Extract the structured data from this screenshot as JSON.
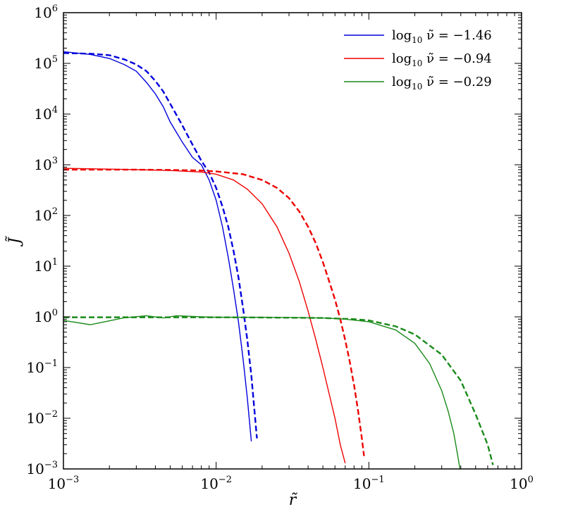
{
  "chart_data": {
    "type": "line",
    "title": "",
    "xlabel": "r̃",
    "ylabel": "J̃",
    "xscale": "log",
    "yscale": "log",
    "xlim": [
      0.001,
      1
    ],
    "ylim": [
      0.001,
      1000000
    ],
    "grid": false,
    "legend_position": "top-right",
    "x_ticks": [
      {
        "base": "10",
        "exp": "−3",
        "value": 0.001
      },
      {
        "base": "10",
        "exp": "−2",
        "value": 0.01
      },
      {
        "base": "10",
        "exp": "−1",
        "value": 0.1
      },
      {
        "base": "10",
        "exp": "0",
        "value": 1
      }
    ],
    "y_ticks": [
      {
        "base": "10",
        "exp": "−3",
        "value": 0.001
      },
      {
        "base": "10",
        "exp": "−2",
        "value": 0.01
      },
      {
        "base": "10",
        "exp": "−1",
        "value": 0.1
      },
      {
        "base": "10",
        "exp": "0",
        "value": 1
      },
      {
        "base": "10",
        "exp": "1",
        "value": 10
      },
      {
        "base": "10",
        "exp": "2",
        "value": 100
      },
      {
        "base": "10",
        "exp": "3",
        "value": 1000
      },
      {
        "base": "10",
        "exp": "4",
        "value": 10000
      },
      {
        "base": "10",
        "exp": "5",
        "value": 100000
      },
      {
        "base": "10",
        "exp": "6",
        "value": 1000000
      }
    ],
    "series": [
      {
        "name_prefix": "log",
        "name_sub": "10",
        "name_suffix": " ν̃ = −1.46",
        "color": "#0000dd",
        "style": "solid",
        "x": [
          0.001,
          0.0015,
          0.002,
          0.0025,
          0.003,
          0.0035,
          0.004,
          0.0045,
          0.005,
          0.006,
          0.007,
          0.008,
          0.009,
          0.01,
          0.011,
          0.012,
          0.013,
          0.014,
          0.015,
          0.016,
          0.017
        ],
        "y": [
          170000,
          150000,
          125000,
          95000,
          70000,
          42000,
          25000,
          14000,
          7000,
          2800,
          1400,
          1000,
          500,
          200,
          60,
          15,
          3.5,
          0.8,
          0.15,
          0.025,
          0.0035
        ]
      },
      {
        "name_prefix": "",
        "name_sub": "",
        "name_suffix": "",
        "color": "#0000dd",
        "style": "dashed",
        "x": [
          0.001,
          0.0015,
          0.002,
          0.0025,
          0.003,
          0.0035,
          0.004,
          0.0045,
          0.005,
          0.006,
          0.007,
          0.008,
          0.009,
          0.01,
          0.011,
          0.012,
          0.013,
          0.014,
          0.015,
          0.016,
          0.017,
          0.018,
          0.0185
        ],
        "y": [
          160000,
          155000,
          145000,
          120000,
          95000,
          70000,
          45000,
          28000,
          16000,
          6000,
          2500,
          1200,
          700,
          350,
          150,
          60,
          20,
          6,
          1.5,
          0.35,
          0.07,
          0.01,
          0.004
        ]
      },
      {
        "name_prefix": "log",
        "name_sub": "10",
        "name_suffix": " ν̃ = −0.94",
        "color": "#ee0000",
        "style": "solid",
        "x": [
          0.001,
          0.002,
          0.003,
          0.005,
          0.008,
          0.01,
          0.013,
          0.016,
          0.02,
          0.025,
          0.03,
          0.035,
          0.04,
          0.045,
          0.05,
          0.055,
          0.06,
          0.065,
          0.07
        ],
        "y": [
          850,
          820,
          800,
          770,
          720,
          650,
          500,
          330,
          170,
          60,
          18,
          5,
          1.3,
          0.35,
          0.1,
          0.03,
          0.01,
          0.003,
          0.0013
        ]
      },
      {
        "name_prefix": "",
        "name_sub": "",
        "name_suffix": "",
        "color": "#ee0000",
        "style": "dashed",
        "x": [
          0.001,
          0.002,
          0.003,
          0.005,
          0.008,
          0.01,
          0.015,
          0.02,
          0.025,
          0.03,
          0.035,
          0.04,
          0.045,
          0.05,
          0.055,
          0.06,
          0.065,
          0.07,
          0.075,
          0.08,
          0.085,
          0.09,
          0.093
        ],
        "y": [
          800,
          800,
          800,
          790,
          770,
          740,
          650,
          500,
          350,
          220,
          120,
          60,
          28,
          12,
          5,
          2.2,
          0.9,
          0.35,
          0.13,
          0.045,
          0.014,
          0.004,
          0.0018
        ]
      },
      {
        "name_prefix": "log",
        "name_sub": "10",
        "name_suffix": " ν̃ = −0.29",
        "color": "#1a8a1a",
        "style": "solid",
        "x": [
          0.001,
          0.0015,
          0.0025,
          0.0035,
          0.0045,
          0.0055,
          0.0065,
          0.008,
          0.01,
          0.015,
          0.02,
          0.03,
          0.05,
          0.07,
          0.1,
          0.15,
          0.2,
          0.25,
          0.3,
          0.33,
          0.36,
          0.38,
          0.4
        ],
        "y": [
          0.85,
          0.7,
          0.96,
          1.05,
          0.95,
          1.05,
          1.03,
          1.0,
          0.98,
          0.98,
          0.98,
          0.97,
          0.95,
          0.9,
          0.8,
          0.55,
          0.3,
          0.12,
          0.035,
          0.014,
          0.005,
          0.002,
          0.0008
        ]
      },
      {
        "name_prefix": "",
        "name_sub": "",
        "name_suffix": "",
        "color": "#1a8a1a",
        "style": "dashed",
        "x": [
          0.001,
          0.002,
          0.005,
          0.01,
          0.02,
          0.05,
          0.08,
          0.1,
          0.15,
          0.2,
          0.3,
          0.4,
          0.5,
          0.6,
          0.65
        ],
        "y": [
          0.98,
          0.98,
          0.98,
          0.98,
          0.97,
          0.95,
          0.9,
          0.85,
          0.65,
          0.45,
          0.18,
          0.055,
          0.012,
          0.003,
          0.0012
        ]
      }
    ]
  }
}
